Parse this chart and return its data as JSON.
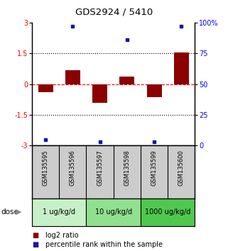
{
  "title": "GDS2924 / 5410",
  "samples": [
    "GSM135595",
    "GSM135596",
    "GSM135597",
    "GSM135598",
    "GSM135599",
    "GSM135600"
  ],
  "log2_ratio": [
    -0.38,
    0.68,
    -0.92,
    0.38,
    -0.62,
    1.55
  ],
  "percentile_rank": [
    5,
    97,
    3,
    86,
    3,
    97
  ],
  "bar_color": "#8B0000",
  "square_color": "#1515aa",
  "ylim_min": -3,
  "ylim_max": 3,
  "yticks_left": [
    -3,
    -1.5,
    0,
    1.5,
    3
  ],
  "yticks_right_labels": [
    "0",
    "25",
    "50",
    "75",
    "100%"
  ],
  "dose_groups": [
    {
      "label": "1 ug/kg/d",
      "samples": [
        0,
        1
      ],
      "color": "#c8f0c8"
    },
    {
      "label": "10 ug/kg/d",
      "samples": [
        2,
        3
      ],
      "color": "#90e090"
    },
    {
      "label": "1000 ug/kg/d",
      "samples": [
        4,
        5
      ],
      "color": "#50c850"
    }
  ],
  "legend_red": "log2 ratio",
  "legend_blue": "percentile rank within the sample",
  "background_color": "#ffffff",
  "label_area_color": "#cccccc"
}
